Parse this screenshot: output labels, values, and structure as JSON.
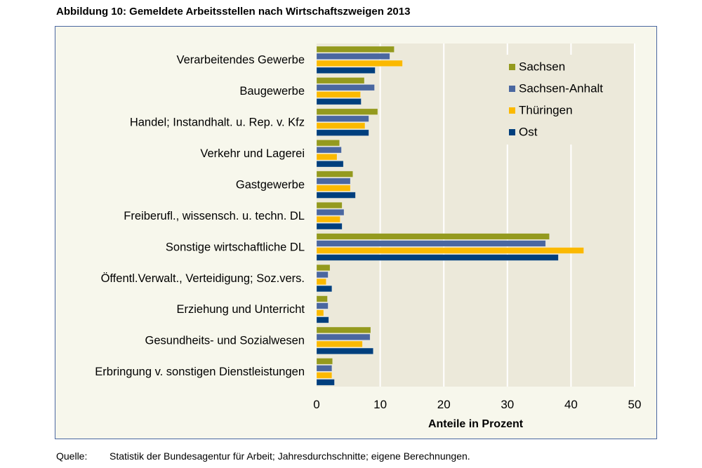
{
  "title": "Abbildung 10: Gemeldete Arbeitsstellen nach Wirtschaftszweigen 2013",
  "source": {
    "label": "Quelle:",
    "text": "Statistik der Bundesagentur für Arbeit; Jahresdurchschnitte; eigene Berechnungen."
  },
  "chart_data": {
    "type": "bar",
    "orientation": "horizontal",
    "title": "Abbildung 10: Gemeldete Arbeitsstellen nach Wirtschaftszweigen 2013",
    "xlabel": "Anteile in Prozent",
    "ylabel": "",
    "xlim": [
      0,
      50
    ],
    "xticks": [
      0,
      10,
      20,
      30,
      40,
      50
    ],
    "grid": true,
    "legend_position": "top-right",
    "categories": [
      "Verarbeitendes Gewerbe",
      "Baugewerbe",
      "Handel; Instandhalt. u. Rep. v. Kfz",
      "Verkehr und Lagerei",
      "Gastgewerbe",
      "Freiberufl., wissensch. u. techn. DL",
      "Sonstige wirtschaftliche DL",
      "Öffentl.Verwalt., Verteidigung; Soz.vers.",
      "Erziehung und Unterricht",
      "Gesundheits- und Sozialwesen",
      "Erbringung v. sonstigen Dienstleistungen"
    ],
    "series": [
      {
        "name": "Sachsen",
        "color": "#949a1e",
        "values": [
          12.2,
          7.5,
          9.6,
          3.6,
          5.7,
          4.0,
          36.6,
          2.1,
          1.7,
          8.5,
          2.5
        ]
      },
      {
        "name": "Sachsen-Anhalt",
        "color": "#4a67a0",
        "values": [
          11.5,
          9.1,
          8.2,
          3.9,
          5.3,
          4.3,
          36.0,
          1.8,
          1.8,
          8.4,
          2.4
        ]
      },
      {
        "name": "Thüringen",
        "color": "#fbb900",
        "values": [
          13.5,
          6.9,
          7.6,
          3.2,
          5.3,
          3.7,
          42.0,
          1.5,
          1.1,
          7.2,
          2.4
        ]
      },
      {
        "name": "Ost",
        "color": "#003f7d",
        "values": [
          9.2,
          7.0,
          8.2,
          4.2,
          6.1,
          4.0,
          38.0,
          2.4,
          1.9,
          8.9,
          2.8
        ]
      }
    ]
  }
}
